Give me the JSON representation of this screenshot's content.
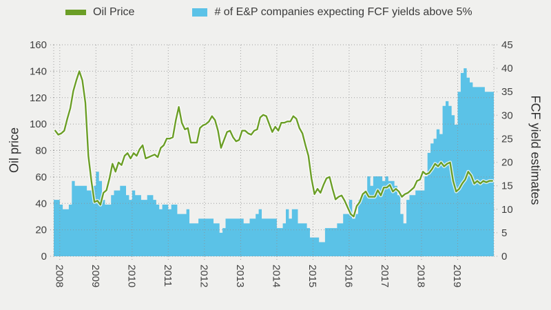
{
  "legend": {
    "items": [
      {
        "label": "Oil Price",
        "swatch": "line-swatch"
      },
      {
        "label": "# of E&P companies expecting FCF yields above 5%",
        "swatch": "patch-swatch"
      }
    ]
  },
  "axes": {
    "left_title": "Oil price",
    "right_title": "FCF yield estimates",
    "left_ticks": [
      0,
      20,
      40,
      60,
      80,
      100,
      120,
      140,
      160
    ],
    "right_ticks": [
      0,
      5,
      10,
      15,
      20,
      25,
      30,
      35,
      40,
      45
    ],
    "x_ticks": [
      "2008",
      "2009",
      "2010",
      "2011",
      "2012",
      "2013",
      "2014",
      "2015",
      "2016",
      "2017",
      "2018",
      "2019"
    ]
  },
  "colors": {
    "background": "#f0f0ee",
    "oil_line": "#6b9e26",
    "fcf_area": "#5bc2e7",
    "grid": "#8f8f8f",
    "text": "#3f3f3f",
    "line_halo": "#ffffff"
  },
  "chart_data": {
    "type": "combo",
    "x_start": "2007-11",
    "x_interval": "month",
    "x_tick_start_index": 2,
    "months_per_tick": 12,
    "left_range": [
      0,
      160
    ],
    "right_range": [
      0,
      45
    ],
    "grid": "dotted",
    "legend_position": "top",
    "series": [
      {
        "name": "Oil Price",
        "type": "line",
        "axis": "left",
        "color": "#6b9e26",
        "values": [
          95,
          92,
          93,
          95,
          104,
          112,
          125,
          133,
          140,
          133,
          116,
          76,
          57,
          41,
          42,
          39,
          48,
          50,
          59,
          70,
          64,
          71,
          69,
          76,
          78,
          74,
          78,
          76,
          81,
          84,
          74,
          75,
          76,
          77,
          75,
          82,
          84,
          89,
          89,
          90,
          103,
          113,
          101,
          96,
          97,
          86,
          86,
          86,
          97,
          99,
          100,
          102,
          106,
          103,
          95,
          82,
          88,
          94,
          95,
          90,
          87,
          88,
          95,
          95,
          93,
          92,
          95,
          96,
          105,
          107,
          106,
          100,
          94,
          98,
          95,
          101,
          101,
          102,
          102,
          106,
          104,
          97,
          93,
          84,
          76,
          59,
          47,
          51,
          48,
          54,
          59,
          60,
          51,
          43,
          45,
          46,
          42,
          37,
          32,
          30,
          38,
          41,
          47,
          49,
          45,
          45,
          45,
          50,
          46,
          52,
          52,
          54,
          49,
          51,
          49,
          45,
          47,
          48,
          50,
          52,
          57,
          58,
          64,
          62,
          63,
          66,
          70,
          68,
          71,
          68,
          70,
          71,
          57,
          49,
          51,
          55,
          58,
          64,
          61,
          55,
          57,
          55,
          57,
          56,
          57,
          57
        ]
      },
      {
        "name": "# of E&P companies expecting FCF yields above 5%",
        "type": "step-area",
        "axis": "right",
        "color": "#5bc2e7",
        "values": [
          12,
          12,
          11,
          10,
          10,
          11,
          16,
          15,
          15,
          15,
          15,
          14,
          14,
          15,
          18,
          16,
          12,
          11,
          11,
          13,
          14,
          14,
          15,
          15,
          13,
          12,
          14,
          13,
          13,
          12,
          12,
          13,
          13,
          12,
          11,
          10,
          11,
          11,
          10,
          11,
          11,
          9,
          9,
          9,
          10,
          7,
          7,
          7,
          8,
          8,
          8,
          8,
          8,
          7,
          7,
          5,
          6,
          8,
          8,
          8,
          8,
          8,
          8,
          7,
          7,
          8,
          8,
          9,
          10,
          8,
          8,
          8,
          8,
          8,
          6,
          6,
          7,
          10,
          8,
          10,
          10,
          7,
          7,
          7,
          6,
          4,
          4,
          4,
          3,
          3,
          6,
          6,
          6,
          6,
          7,
          7,
          9,
          9,
          12,
          8,
          9,
          12,
          13,
          14,
          17,
          15,
          17,
          17,
          17,
          16,
          17,
          16,
          16,
          15,
          13,
          9,
          7,
          12,
          13,
          13,
          14,
          14,
          14,
          17,
          22,
          24,
          25,
          27,
          26,
          32,
          33,
          32,
          30,
          28,
          35,
          39,
          40,
          38,
          37,
          36,
          36,
          36,
          36,
          35,
          35,
          35
        ]
      }
    ]
  }
}
